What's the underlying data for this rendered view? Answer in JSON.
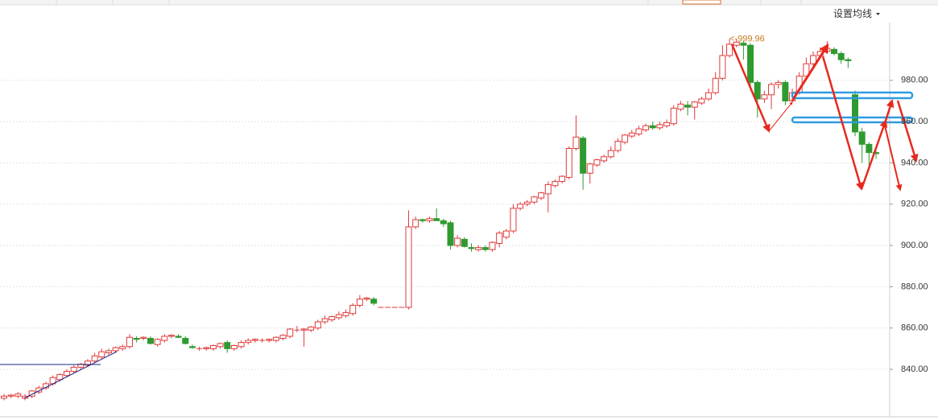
{
  "chart_data": {
    "type": "candlestick",
    "menu_label": "设置均线",
    "annotation": "<-999.96",
    "up_color": "#e03a3a",
    "down_color": "#2f9a2f",
    "grid": true,
    "ylim": [
      817,
      1008
    ],
    "yticks": [
      {
        "value": 840,
        "label": "840.00"
      },
      {
        "value": 860,
        "label": "860.00"
      },
      {
        "value": 880,
        "label": "880.00"
      },
      {
        "value": 900,
        "label": "900.00"
      },
      {
        "value": 920,
        "label": "920.00"
      },
      {
        "value": 940,
        "label": "940.00"
      },
      {
        "value": 960,
        "label": "960.00"
      },
      {
        "value": 980,
        "label": "980.00"
      }
    ],
    "ohlc": [
      [
        826,
        828,
        825,
        827
      ],
      [
        827,
        828,
        826,
        827.5
      ],
      [
        827,
        829,
        826,
        828
      ],
      [
        826,
        828,
        825,
        827
      ],
      [
        827,
        830,
        826,
        829.5
      ],
      [
        829,
        832,
        828,
        831
      ],
      [
        831,
        834,
        830,
        833
      ],
      [
        833,
        837,
        832,
        836
      ],
      [
        835,
        838,
        834,
        837.5
      ],
      [
        837,
        840,
        836,
        839
      ],
      [
        839,
        842,
        838,
        841
      ],
      [
        841,
        843,
        840,
        842.5
      ],
      [
        842,
        845,
        841,
        844
      ],
      [
        844,
        848,
        843,
        846.5
      ],
      [
        846,
        850,
        845,
        848.5
      ],
      [
        848,
        850,
        847,
        849
      ],
      [
        849,
        851,
        848,
        850.5
      ],
      [
        850,
        852,
        849,
        851
      ],
      [
        851,
        857,
        850,
        855.5
      ],
      [
        855,
        856,
        853,
        854.5
      ],
      [
        855,
        856,
        854,
        855.5
      ],
      [
        855,
        856,
        852,
        852.5
      ],
      [
        852,
        855,
        851,
        854.5
      ],
      [
        854,
        857,
        853,
        856
      ],
      [
        856,
        857,
        855,
        856.5
      ],
      [
        856,
        857,
        855,
        855.5
      ],
      [
        855,
        856,
        852,
        852.5
      ],
      [
        851,
        852,
        850,
        850.5
      ],
      [
        850,
        851,
        849,
        850
      ],
      [
        850,
        851,
        849,
        850.5
      ],
      [
        850,
        852,
        849,
        851.5
      ],
      [
        851,
        853,
        850,
        852.5
      ],
      [
        853,
        854,
        848,
        850
      ],
      [
        850,
        852,
        849,
        851.5
      ],
      [
        851,
        854,
        850,
        853
      ],
      [
        853,
        855,
        852,
        854
      ],
      [
        854,
        855,
        853,
        854.5
      ],
      [
        854,
        855,
        853,
        854
      ],
      [
        854,
        855,
        853,
        854.5
      ],
      [
        854,
        856,
        853,
        855.5
      ],
      [
        855,
        857,
        854,
        856.5
      ],
      [
        856,
        860,
        855,
        859.5
      ],
      [
        859,
        861,
        858,
        859
      ],
      [
        859,
        860,
        851,
        859.5
      ],
      [
        859,
        861,
        858,
        860.5
      ],
      [
        860,
        864,
        859,
        863
      ],
      [
        863,
        866,
        862,
        864.5
      ],
      [
        864,
        866,
        863,
        865.5
      ],
      [
        865,
        868,
        864,
        866.5
      ],
      [
        866,
        869,
        865,
        867.5
      ],
      [
        867,
        872,
        866,
        871
      ],
      [
        871,
        876,
        870,
        874
      ],
      [
        874,
        875,
        873,
        874.5
      ],
      [
        874,
        875,
        871,
        872
      ],
      [
        870,
        870,
        870,
        870
      ],
      [
        870,
        870,
        870,
        870
      ],
      [
        870,
        870,
        870,
        870
      ],
      [
        870,
        870,
        870,
        870
      ],
      [
        870,
        917,
        869,
        909
      ],
      [
        909,
        914,
        908,
        912.5
      ],
      [
        912.5,
        913,
        911,
        912
      ],
      [
        912,
        914,
        911,
        913
      ],
      [
        913,
        918,
        912,
        912
      ],
      [
        912,
        913,
        909,
        910.5
      ],
      [
        911,
        912,
        898,
        900
      ],
      [
        900,
        905,
        899,
        903.5
      ],
      [
        903,
        904,
        899,
        899.5
      ],
      [
        899,
        901,
        897,
        898.5
      ],
      [
        898,
        900,
        897,
        899
      ],
      [
        899,
        900,
        897,
        898
      ],
      [
        898,
        902,
        897,
        901.5
      ],
      [
        901,
        907,
        899,
        906
      ],
      [
        904,
        908,
        903,
        907
      ],
      [
        907,
        920,
        906,
        918
      ],
      [
        918,
        921,
        917,
        920
      ],
      [
        920,
        922,
        919,
        921
      ],
      [
        921,
        924,
        920,
        923.5
      ],
      [
        923,
        926,
        922,
        925.5
      ],
      [
        925,
        931,
        916,
        929.5
      ],
      [
        929,
        932,
        928,
        931
      ],
      [
        931,
        934,
        930,
        933.5
      ],
      [
        933,
        948,
        932,
        947
      ],
      [
        947,
        963,
        946,
        952.5
      ],
      [
        952,
        953,
        927,
        935
      ],
      [
        935,
        940,
        930,
        939.5
      ],
      [
        939,
        942,
        938,
        941.5
      ],
      [
        941,
        944,
        940,
        943
      ],
      [
        943,
        948,
        942,
        946
      ],
      [
        946,
        952,
        945,
        950.5
      ],
      [
        950,
        954,
        949,
        953.5
      ],
      [
        953,
        956,
        952,
        954.5
      ],
      [
        954,
        958,
        953,
        956.5
      ],
      [
        956,
        959,
        955,
        958
      ],
      [
        958,
        960,
        956,
        957
      ],
      [
        957,
        960,
        956,
        958.5
      ],
      [
        958,
        961,
        957,
        959.5
      ],
      [
        959,
        968,
        958,
        966.5
      ],
      [
        966,
        970,
        965,
        968.5
      ],
      [
        968,
        970,
        963,
        967
      ],
      [
        967,
        970,
        961,
        969.5
      ],
      [
        969,
        972,
        968,
        971
      ],
      [
        971,
        976,
        970,
        974
      ],
      [
        974,
        984,
        973,
        981
      ],
      [
        981,
        997,
        980,
        992
      ],
      [
        992,
        1000,
        991,
        997.5
      ],
      [
        997,
        999.96,
        996,
        998.5
      ],
      [
        998,
        999,
        990,
        997
      ],
      [
        997,
        998,
        975,
        979
      ],
      [
        979,
        980,
        962,
        971
      ],
      [
        971,
        975,
        969,
        973
      ],
      [
        973,
        979,
        966,
        978
      ],
      [
        978,
        980,
        976,
        979
      ],
      [
        979,
        980,
        968,
        970
      ],
      [
        970,
        976,
        969,
        974
      ],
      [
        974,
        984,
        973,
        982
      ],
      [
        982,
        991,
        981,
        988
      ],
      [
        988,
        994,
        987,
        992
      ],
      [
        992,
        996,
        991,
        994
      ],
      [
        994,
        999,
        993,
        995.5
      ],
      [
        995,
        996,
        992,
        993
      ],
      [
        993,
        994,
        988,
        990
      ],
      [
        990,
        991,
        986,
        989.5
      ],
      [
        973,
        975,
        953,
        955
      ],
      [
        955,
        957,
        940,
        949
      ],
      [
        949,
        950,
        938,
        945
      ],
      [
        945,
        946,
        942,
        944.5
      ]
    ]
  }
}
